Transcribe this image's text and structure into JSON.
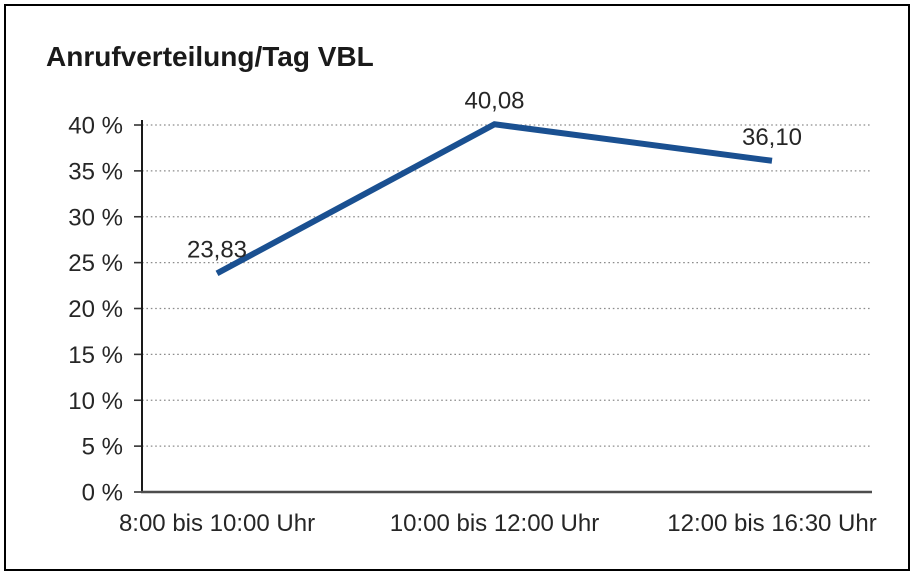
{
  "chart_data": {
    "type": "line",
    "title": "Anrufverteilung/Tag VBL",
    "categories": [
      "8:00 bis 10:00 Uhr",
      "10:00 bis 12:00 Uhr",
      "12:00 bis 16:30 Uhr"
    ],
    "values": [
      23.83,
      40.08,
      36.1
    ],
    "data_labels": [
      "23,83",
      "40,08",
      "36,10"
    ],
    "xlabel": "",
    "ylabel": "",
    "ylim": [
      0,
      40
    ],
    "y_tick_values": [
      0,
      5,
      10,
      15,
      20,
      25,
      30,
      35,
      40
    ],
    "y_tick_labels": [
      "0 %",
      "5 %",
      "10 %",
      "15 %",
      "20 %",
      "25 %",
      "30 %",
      "35 %",
      "40 %"
    ],
    "grid": "horizontal-dotted",
    "legend": "none",
    "colors": {
      "line": "#1a5091",
      "grid": "#8c8c8c",
      "y_axis": "#1a1a1a",
      "x_axis": "#4d4d4d",
      "text": "#262626",
      "frame_border": "#000000",
      "background": "#ffffff"
    }
  }
}
